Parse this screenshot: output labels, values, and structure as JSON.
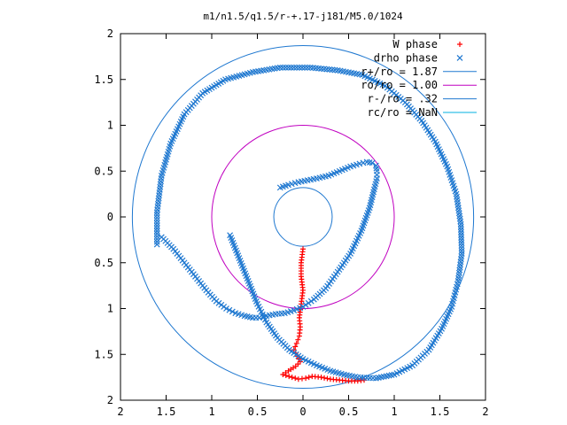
{
  "chart_data": {
    "type": "scatter",
    "title": "m1/n1.5/q1.5/r-+.17-j181/M5.0/1024",
    "xlabel": "",
    "ylabel": "",
    "xlim": [
      2,
      -2
    ],
    "ylim": [
      -2,
      2
    ],
    "x_tick_labels": [
      "2",
      "1.5",
      "1",
      "0.5",
      "0",
      "0.5",
      "1",
      "1.5",
      "2"
    ],
    "y_tick_labels": [
      "2",
      "1.5",
      "1",
      "0.5",
      "0",
      "0.5",
      "1",
      "1.5",
      "2"
    ],
    "grid": false,
    "legend_position": "top-right",
    "series": [
      {
        "name": "W phase",
        "kind": "points",
        "marker": "plus",
        "color": "#ff0000",
        "x": [
          0.0,
          0.02,
          0.02,
          0.0,
          0.02,
          0.04,
          0.03,
          0.04,
          0.07,
          0.1,
          0.06,
          0.03,
          0.08,
          0.16,
          0.22,
          0.12,
          0.05,
          -0.03,
          -0.1,
          -0.2,
          -0.3,
          -0.4,
          -0.5,
          -0.6,
          -0.67
        ],
        "y": [
          -0.35,
          -0.5,
          -0.65,
          -0.8,
          -0.95,
          -1.1,
          -1.2,
          -1.3,
          -1.38,
          -1.45,
          -1.52,
          -1.58,
          -1.63,
          -1.68,
          -1.72,
          -1.75,
          -1.77,
          -1.76,
          -1.74,
          -1.75,
          -1.77,
          -1.78,
          -1.79,
          -1.79,
          -1.78
        ]
      },
      {
        "name": "drho phase",
        "kind": "points",
        "marker": "cross",
        "color": "#1f78d0",
        "x": [
          1.55,
          1.42,
          1.3,
          1.18,
          1.06,
          0.95,
          0.84,
          0.74,
          0.64,
          0.55,
          0.48,
          0.4,
          0.3,
          0.2,
          0.1,
          0.0,
          -0.12,
          -0.25,
          -0.38,
          -0.52,
          -0.64,
          -0.73,
          -0.78,
          -0.81,
          -0.81,
          -0.8,
          -0.76,
          -0.7,
          -0.62,
          -0.52,
          -0.4,
          -0.28,
          -0.15,
          -0.05,
          0.05,
          0.16,
          0.25,
          0.8,
          0.7,
          0.6,
          0.5,
          0.4,
          0.28,
          0.15,
          0.0,
          -0.15,
          -0.3,
          -0.45,
          -0.6,
          -0.8,
          -1.0,
          -1.2,
          -1.38,
          -1.52,
          -1.63,
          -1.7,
          -1.74,
          -1.73,
          -1.68,
          -1.58,
          -1.45,
          -1.3,
          -1.12,
          -0.9,
          -0.65,
          -0.38,
          -0.08,
          0.25,
          0.55,
          0.85,
          1.1,
          1.3,
          1.45,
          1.55,
          1.6,
          1.6
        ],
        "y": [
          -0.22,
          -0.35,
          -0.5,
          -0.65,
          -0.8,
          -0.92,
          -1.0,
          -1.05,
          -1.08,
          -1.1,
          -1.1,
          -1.08,
          -1.06,
          -1.05,
          -1.02,
          -0.98,
          -0.9,
          -0.78,
          -0.6,
          -0.4,
          -0.15,
          0.1,
          0.3,
          0.42,
          0.5,
          0.56,
          0.59,
          0.6,
          0.58,
          0.55,
          0.5,
          0.45,
          0.42,
          0.4,
          0.38,
          0.35,
          0.32,
          -0.2,
          -0.45,
          -0.7,
          -0.95,
          -1.15,
          -1.32,
          -1.45,
          -1.55,
          -1.62,
          -1.68,
          -1.72,
          -1.75,
          -1.76,
          -1.72,
          -1.62,
          -1.45,
          -1.22,
          -0.98,
          -0.7,
          -0.4,
          -0.08,
          0.25,
          0.55,
          0.82,
          1.05,
          1.25,
          1.43,
          1.55,
          1.6,
          1.63,
          1.63,
          1.58,
          1.5,
          1.35,
          1.12,
          0.8,
          0.45,
          0.05,
          -0.3
        ]
      },
      {
        "name": "r+/ro = 1.87",
        "kind": "circle",
        "radius": 1.87,
        "color": "#1f78d0"
      },
      {
        "name": "ro/ro = 1.00",
        "kind": "circle",
        "radius": 1.0,
        "color": "#c000c0"
      },
      {
        "name": "r-/ro = .32",
        "kind": "circle",
        "radius": 0.32,
        "color": "#1f78d0"
      },
      {
        "name": "rc/ro = NaN",
        "kind": "circle",
        "radius": null,
        "color": "#00b0e0"
      }
    ]
  }
}
